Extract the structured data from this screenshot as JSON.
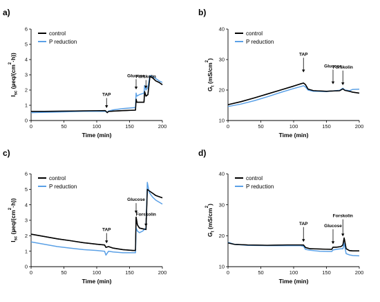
{
  "colors": {
    "control": "#000000",
    "p_reduction": "#5aa0e6"
  },
  "chart_data": [
    {
      "panel": "a)",
      "type": "line",
      "xlabel": "Time (min)",
      "ylabel_main": "I",
      "ylabel_sub": "sc",
      "ylabel_rest": " (µeq/(cm",
      "ylabel_sup": "2",
      "ylabel_end": "·h))",
      "xlim": [
        0,
        200
      ],
      "ylim": [
        0,
        6
      ],
      "xticks": [
        0,
        50,
        100,
        150,
        200
      ],
      "yticks": [
        0,
        1,
        2,
        3,
        4,
        5,
        6
      ],
      "legend_position": "top-left",
      "annotations": [
        {
          "text": "TAP",
          "x": 115
        },
        {
          "text": "Glucose",
          "x": 160
        },
        {
          "text": "Forskolin",
          "x": 175
        }
      ],
      "series": [
        {
          "name": "control",
          "color_key": "control",
          "x": [
            0,
            20,
            40,
            60,
            80,
            100,
            113,
            116,
            118,
            125,
            140,
            159,
            160,
            161,
            165,
            172,
            173,
            175,
            178,
            181,
            185,
            190,
            195,
            200
          ],
          "y": [
            0.6,
            0.6,
            0.61,
            0.62,
            0.63,
            0.64,
            0.65,
            0.52,
            0.6,
            0.62,
            0.65,
            0.68,
            1.4,
            1.2,
            1.2,
            1.2,
            1.9,
            1.6,
            1.7,
            2.9,
            2.8,
            2.6,
            2.5,
            2.35
          ]
        },
        {
          "name": "P reduction",
          "color_key": "p_reduction",
          "x": [
            0,
            20,
            40,
            60,
            80,
            100,
            113,
            116,
            118,
            125,
            140,
            159,
            160,
            161,
            165,
            172,
            173,
            175,
            178,
            181,
            185,
            190,
            195,
            200
          ],
          "y": [
            0.52,
            0.54,
            0.56,
            0.58,
            0.6,
            0.6,
            0.6,
            0.55,
            0.62,
            0.7,
            0.78,
            0.85,
            1.8,
            1.6,
            1.7,
            1.8,
            2.3,
            2.0,
            2.2,
            2.95,
            2.9,
            2.75,
            2.6,
            2.5
          ]
        }
      ]
    },
    {
      "panel": "b)",
      "type": "line",
      "xlabel": "Time (min)",
      "ylabel_main": "G",
      "ylabel_sub": "t",
      "ylabel_rest": " (mS/cm",
      "ylabel_sup": "2",
      "ylabel_end": ")",
      "xlim": [
        0,
        200
      ],
      "ylim": [
        10,
        40
      ],
      "xticks": [
        0,
        50,
        100,
        150,
        200
      ],
      "yticks": [
        10,
        20,
        30,
        40
      ],
      "legend_position": "top-left",
      "annotations": [
        {
          "text": "TAP",
          "x": 115
        },
        {
          "text": "Glucose",
          "x": 160
        },
        {
          "text": "Forskolin",
          "x": 175
        }
      ],
      "series": [
        {
          "name": "control",
          "color_key": "control",
          "x": [
            0,
            20,
            40,
            60,
            80,
            100,
            110,
            115,
            118,
            122,
            130,
            150,
            160,
            170,
            175,
            178,
            185,
            190,
            200
          ],
          "y": [
            15.2,
            16.2,
            17.4,
            18.7,
            20.0,
            21.3,
            22.0,
            22.3,
            21.8,
            20.3,
            19.8,
            19.6,
            19.7,
            19.8,
            20.4,
            19.9,
            19.6,
            19.3,
            19.0
          ]
        },
        {
          "name": "P reduction",
          "color_key": "p_reduction",
          "x": [
            0,
            20,
            40,
            60,
            80,
            100,
            110,
            115,
            118,
            122,
            130,
            150,
            160,
            170,
            175,
            178,
            185,
            190,
            200
          ],
          "y": [
            14.6,
            15.4,
            16.5,
            17.8,
            19.2,
            20.5,
            21.1,
            21.4,
            21.0,
            20.0,
            19.6,
            19.5,
            19.7,
            19.9,
            20.6,
            20.0,
            19.8,
            20.2,
            20.3
          ]
        }
      ]
    },
    {
      "panel": "c)",
      "type": "line",
      "xlabel": "Time (min)",
      "ylabel_main": "I",
      "ylabel_sub": "sc",
      "ylabel_rest": " (µeq/(cm",
      "ylabel_sup": "2",
      "ylabel_end": "·h))",
      "xlim": [
        0,
        200
      ],
      "ylim": [
        0,
        6
      ],
      "xticks": [
        0,
        50,
        100,
        150,
        200
      ],
      "yticks": [
        0,
        1,
        2,
        3,
        4,
        5,
        6
      ],
      "legend_position": "top-left",
      "annotations": [
        {
          "text": "TAP",
          "x": 115
        },
        {
          "text": "Glucose",
          "x": 160
        },
        {
          "text": "Forskolin",
          "x": 175
        }
      ],
      "series": [
        {
          "name": "control",
          "color_key": "control",
          "x": [
            0,
            20,
            40,
            60,
            80,
            100,
            112,
            114,
            118,
            125,
            140,
            155,
            159,
            160,
            162,
            165,
            170,
            175,
            177,
            180,
            185,
            190,
            200
          ],
          "y": [
            2.1,
            1.95,
            1.8,
            1.68,
            1.55,
            1.45,
            1.4,
            1.25,
            1.3,
            1.2,
            1.1,
            1.05,
            1.05,
            3.2,
            2.7,
            2.5,
            2.45,
            2.4,
            5.0,
            4.9,
            4.75,
            4.6,
            4.45
          ]
        },
        {
          "name": "P reduction",
          "color_key": "p_reduction",
          "x": [
            0,
            20,
            40,
            60,
            80,
            100,
            112,
            114,
            118,
            125,
            140,
            155,
            159,
            160,
            162,
            165,
            170,
            175,
            177,
            180,
            185,
            190,
            200
          ],
          "y": [
            1.6,
            1.45,
            1.3,
            1.2,
            1.1,
            1.05,
            1.0,
            0.75,
            1.0,
            0.95,
            0.9,
            0.9,
            0.9,
            2.5,
            2.3,
            2.2,
            2.3,
            2.5,
            5.45,
            4.8,
            4.5,
            4.3,
            4.05
          ]
        }
      ]
    },
    {
      "panel": "d)",
      "type": "line",
      "xlabel": "Time (min)",
      "ylabel_main": "G",
      "ylabel_sub": "t",
      "ylabel_rest": " (mS/cm",
      "ylabel_sup": "2",
      "ylabel_end": ")",
      "xlim": [
        0,
        200
      ],
      "ylim": [
        10,
        40
      ],
      "xticks": [
        0,
        50,
        100,
        150,
        200
      ],
      "yticks": [
        10,
        20,
        30,
        40
      ],
      "legend_position": "top-left",
      "annotations": [
        {
          "text": "TAP",
          "x": 115
        },
        {
          "text": "Glucose",
          "x": 160
        },
        {
          "text": "Forskolin",
          "x": 175
        }
      ],
      "series": [
        {
          "name": "control",
          "color_key": "control",
          "x": [
            0,
            10,
            30,
            60,
            90,
            110,
            115,
            118,
            125,
            140,
            158,
            160,
            165,
            172,
            175,
            177,
            180,
            185,
            190,
            200
          ],
          "y": [
            17.7,
            17.2,
            17.0,
            16.9,
            17.0,
            17.0,
            17.0,
            16.2,
            15.8,
            15.7,
            15.6,
            16.3,
            16.3,
            16.5,
            17.0,
            19.3,
            15.8,
            15.2,
            15.1,
            15.1
          ]
        },
        {
          "name": "P reduction",
          "color_key": "p_reduction",
          "x": [
            0,
            10,
            30,
            60,
            90,
            110,
            115,
            118,
            125,
            140,
            158,
            160,
            165,
            172,
            175,
            177,
            180,
            185,
            190,
            200
          ],
          "y": [
            17.9,
            17.2,
            16.9,
            16.8,
            16.8,
            16.8,
            16.6,
            15.6,
            15.3,
            15.0,
            14.9,
            15.4,
            15.6,
            15.8,
            15.8,
            17.6,
            14.2,
            13.8,
            13.6,
            13.5
          ]
        }
      ]
    }
  ]
}
